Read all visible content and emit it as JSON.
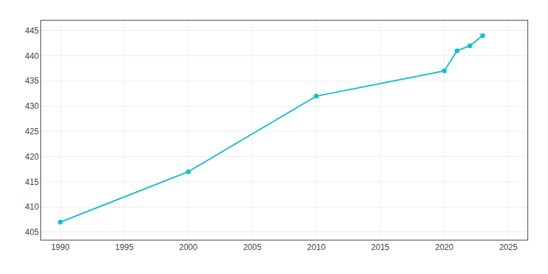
{
  "chart_data": {
    "type": "line",
    "x": [
      1990,
      2000,
      2010,
      2020,
      2021,
      2022,
      2023
    ],
    "values": [
      407,
      417,
      432,
      437,
      441,
      442,
      444
    ],
    "color": "#17becf",
    "marker": "circle",
    "xlim": [
      1988.5,
      2026.5
    ],
    "ylim": [
      403.5,
      447
    ],
    "xticks": [
      1990,
      1995,
      2000,
      2005,
      2010,
      2015,
      2020,
      2025
    ],
    "yticks": [
      405,
      410,
      415,
      420,
      425,
      430,
      435,
      440,
      445
    ],
    "grid": true
  }
}
